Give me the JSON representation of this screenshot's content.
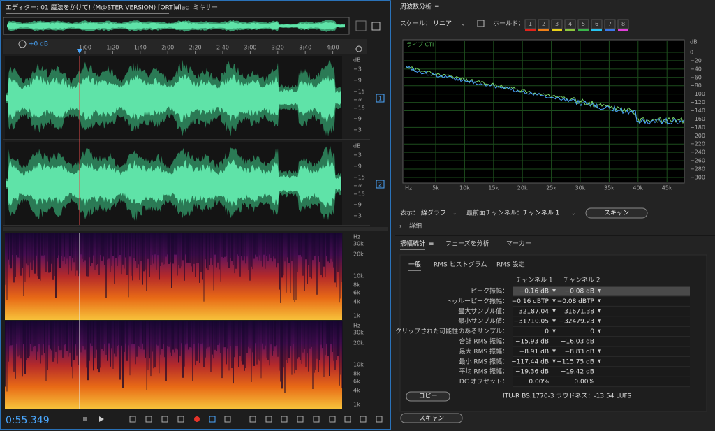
{
  "editor": {
    "tab": "エディター: 01 魔法をかけて! (M@STER VERSION) [ORT].flac",
    "mixer_tab": "ミキサー",
    "gain": "+0 dB",
    "time_ruler": [
      "1:00",
      "1:20",
      "1:40",
      "2:00",
      "2:20",
      "2:40",
      "3:00",
      "3:20",
      "3:40",
      "4:00"
    ],
    "channels": [
      {
        "badge": "1",
        "db_scale": [
          "dB",
          "−3",
          "−9",
          "−15",
          "−∞",
          "−15",
          "−9",
          "−3"
        ]
      },
      {
        "badge": "2",
        "db_scale": [
          "dB",
          "−3",
          "−9",
          "−15",
          "−∞",
          "−15",
          "−9",
          "−3"
        ]
      }
    ],
    "freq_scale": [
      "Hz",
      "30k",
      "20k",
      "10k",
      "8k",
      "6k",
      "4k",
      "1k"
    ],
    "current_time": "0:55.349"
  },
  "frequency_analysis": {
    "title": "周波数分析",
    "scale_label": "スケール：",
    "scale": "リニア",
    "hold_label": "ホールド：",
    "hold": [
      {
        "label": "1",
        "color": "#e2231a"
      },
      {
        "label": "2",
        "color": "#f07f17"
      },
      {
        "label": "3",
        "color": "#e9d21a"
      },
      {
        "label": "4",
        "color": "#8cc63e"
      },
      {
        "label": "5",
        "color": "#38b54a"
      },
      {
        "label": "6",
        "color": "#27c4f0"
      },
      {
        "label": "7",
        "color": "#3b78e7"
      },
      {
        "label": "8",
        "color": "#e03fd8"
      }
    ],
    "live_label": "ライブ CTI",
    "y_labels": [
      "dB",
      "0",
      "−20",
      "−40",
      "−60",
      "−80",
      "−100",
      "−120",
      "−140",
      "−160",
      "−180",
      "−200",
      "−220",
      "−240",
      "−260",
      "−280",
      "−300"
    ],
    "x_labels": [
      "Hz",
      "5k",
      "10k",
      "15k",
      "20k",
      "25k",
      "30k",
      "35k",
      "40k",
      "45k"
    ],
    "display_label": "表示：",
    "display": "線グラフ",
    "front_channel_label": "最前面チャンネル：",
    "front_channel": "チャンネル 1",
    "scan": "スキャン",
    "details": "詳細"
  },
  "amplitude_stats": {
    "tabs": [
      "振幅統計",
      "フェーズを分析",
      "マーカー"
    ],
    "subtabs": [
      "一般",
      "RMS ヒストグラム",
      "RMS 設定"
    ],
    "columns": [
      "チャンネル 1",
      "チャンネル 2"
    ],
    "rows": [
      [
        "ピーク振幅：",
        "−0.16 dB",
        "−0.08 dB"
      ],
      [
        "トゥルーピーク振幅：",
        "−0.16 dBTP",
        "−0.08 dBTP"
      ],
      [
        "最大サンプル値：",
        "32187.04",
        "31671.38"
      ],
      [
        "最小サンプル値：",
        "−31710.05",
        "−32479.23"
      ],
      [
        "クリップされた可能性のあるサンプル：",
        "0",
        "0"
      ],
      [
        "合計 RMS 振幅：",
        "−15.93 dB",
        "−16.03 dB"
      ],
      [
        "最大 RMS 振幅：",
        "−8.91 dB",
        "−8.83 dB"
      ],
      [
        "最小 RMS 振幅：",
        "−117.44 dB",
        "−115.75 dB"
      ],
      [
        "平均 RMS 振幅：",
        "−19.36 dB",
        "−19.42 dB"
      ],
      [
        "DC オフセット：",
        "0.00%",
        "0.00%"
      ]
    ],
    "copy": "コピー",
    "loudness": "ITU-R BS.1770-3 ラウドネス：-13.54 LUFS",
    "scan": "スキャン"
  }
}
